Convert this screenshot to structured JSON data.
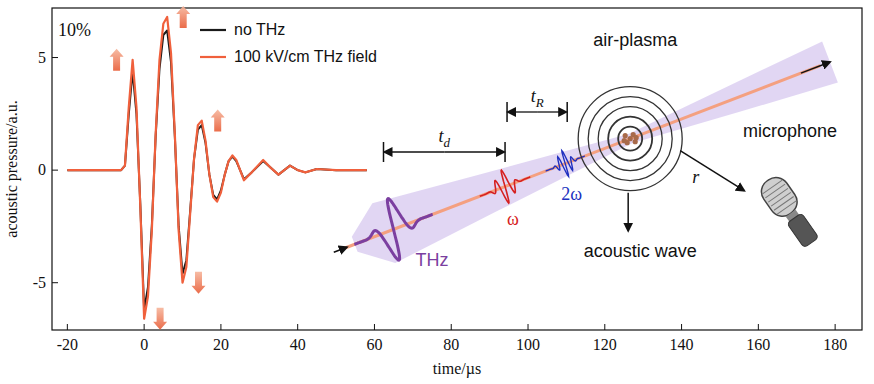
{
  "chart_data": {
    "type": "line",
    "x_label": "time/µs",
    "y_label": "acoustic pressure/a.u.",
    "annotation": "10%",
    "x": [
      -20,
      -6,
      -5,
      -4,
      -3,
      -2,
      -1,
      0,
      1,
      2,
      3,
      4,
      5,
      6,
      7,
      8,
      9,
      10,
      11,
      12,
      13,
      14,
      15,
      16,
      17,
      18,
      19,
      20,
      21,
      22,
      23,
      24,
      26,
      28,
      31,
      33,
      35,
      38,
      40,
      42,
      45,
      50,
      58
    ],
    "series": [
      {
        "name": "no THz",
        "color": "#1a1a1a",
        "values": [
          0,
          0,
          0.2,
          2.5,
          4.4,
          2.5,
          -1.5,
          -6.2,
          -5.2,
          -2.5,
          1.5,
          4.5,
          6.0,
          6.2,
          4.8,
          1.5,
          -2.5,
          -4.6,
          -4.0,
          -1.8,
          0.5,
          1.8,
          2.0,
          1.2,
          -0.2,
          -1.1,
          -1.3,
          -0.9,
          -0.2,
          0.4,
          0.6,
          0.4,
          -0.4,
          -0.1,
          0.4,
          0.1,
          -0.2,
          0.2,
          0,
          -0.1,
          0.05,
          0,
          0
        ]
      },
      {
        "name": "100 kV/cm THz field",
        "color": "#f0603c",
        "values": [
          0,
          0,
          0.2,
          2.8,
          4.9,
          2.8,
          -1.6,
          -6.6,
          -5.6,
          -2.7,
          1.6,
          4.9,
          6.5,
          6.8,
          5.2,
          1.6,
          -2.7,
          -5.0,
          -4.3,
          -1.9,
          0.5,
          2.0,
          2.2,
          1.3,
          -0.2,
          -1.2,
          -1.4,
          -1.0,
          -0.2,
          0.4,
          0.65,
          0.45,
          -0.45,
          -0.1,
          0.45,
          0.1,
          -0.2,
          0.2,
          0,
          -0.1,
          0.05,
          0,
          0
        ]
      }
    ],
    "xlim": [
      -24,
      187
    ],
    "ylim": [
      -7.1,
      7.2
    ],
    "xticks": [
      -20,
      0,
      20,
      40,
      60,
      80,
      100,
      120,
      140,
      160,
      180
    ],
    "yticks": [
      -5,
      0,
      5
    ],
    "legend": "top",
    "grid": false
  },
  "diagram": {
    "air_plasma": "air-plasma",
    "microphone": "microphone",
    "acoustic_wave": "acoustic wave",
    "r": "r",
    "thz": "THz",
    "omega": "ω",
    "two_omega": "2ω",
    "t_d": {
      "base": "t",
      "sub": "d"
    },
    "t_R": {
      "base": "t",
      "sub": "R"
    }
  }
}
